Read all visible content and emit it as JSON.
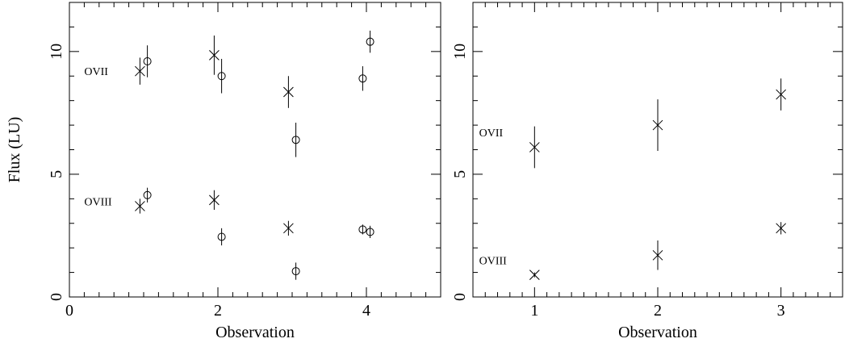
{
  "chart_data": [
    {
      "type": "scatter",
      "xlabel": "Observation",
      "ylabel": "Flux (LU)",
      "xlim": [
        0,
        5
      ],
      "ylim": [
        0,
        12
      ],
      "x_ticks": [
        0,
        2,
        4
      ],
      "y_ticks": [
        0,
        5,
        10
      ],
      "annotations": [
        {
          "text": "OVII",
          "x": 0.2,
          "y": 9.2
        },
        {
          "text": "OVIII",
          "x": 0.2,
          "y": 3.9
        }
      ],
      "series": [
        {
          "marker": "star",
          "line": "OVII",
          "points": [
            {
              "x": 0.95,
              "y": 9.2,
              "err": 0.55
            },
            {
              "x": 1.95,
              "y": 9.85,
              "err": 0.8
            },
            {
              "x": 2.95,
              "y": 8.35,
              "err": 0.65
            }
          ]
        },
        {
          "marker": "circle",
          "line": "OVII",
          "points": [
            {
              "x": 1.05,
              "y": 9.6,
              "err": 0.65
            },
            {
              "x": 2.05,
              "y": 9.0,
              "err": 0.7
            },
            {
              "x": 3.05,
              "y": 6.4,
              "err": 0.7
            },
            {
              "x": 3.95,
              "y": 8.9,
              "err": 0.5
            },
            {
              "x": 4.05,
              "y": 10.4,
              "err": 0.45
            }
          ]
        },
        {
          "marker": "star",
          "line": "OVIII",
          "points": [
            {
              "x": 0.95,
              "y": 3.7,
              "err": 0.3
            },
            {
              "x": 1.95,
              "y": 3.95,
              "err": 0.4
            },
            {
              "x": 2.95,
              "y": 2.8,
              "err": 0.3
            }
          ]
        },
        {
          "marker": "circle",
          "line": "OVIII",
          "points": [
            {
              "x": 1.05,
              "y": 4.15,
              "err": 0.3
            },
            {
              "x": 2.05,
              "y": 2.45,
              "err": 0.35
            },
            {
              "x": 3.05,
              "y": 1.05,
              "err": 0.35
            },
            {
              "x": 3.95,
              "y": 2.75,
              "err": 0.2
            },
            {
              "x": 4.05,
              "y": 2.65,
              "err": 0.25
            }
          ]
        }
      ]
    },
    {
      "type": "scatter",
      "xlabel": "Observation",
      "ylabel": "",
      "xlim": [
        0.5,
        3.5
      ],
      "ylim": [
        0,
        12
      ],
      "x_ticks": [
        1,
        2,
        3
      ],
      "y_ticks": [
        0,
        5,
        10
      ],
      "annotations": [
        {
          "text": "OVII",
          "x": 0.55,
          "y": 6.7
        },
        {
          "text": "OVIII",
          "x": 0.55,
          "y": 1.5
        }
      ],
      "series": [
        {
          "marker": "star",
          "line": "OVII",
          "points": [
            {
              "x": 1,
              "y": 6.1,
              "err": 0.85
            },
            {
              "x": 2,
              "y": 7.0,
              "err": 1.05
            },
            {
              "x": 3,
              "y": 8.25,
              "err": 0.65
            }
          ]
        },
        {
          "marker": "star",
          "line": "OVIII",
          "points": [
            {
              "x": 1,
              "y": 0.9,
              "err": 0.1
            },
            {
              "x": 2,
              "y": 1.7,
              "err": 0.6
            },
            {
              "x": 3,
              "y": 2.8,
              "err": 0.25
            }
          ]
        }
      ]
    }
  ]
}
